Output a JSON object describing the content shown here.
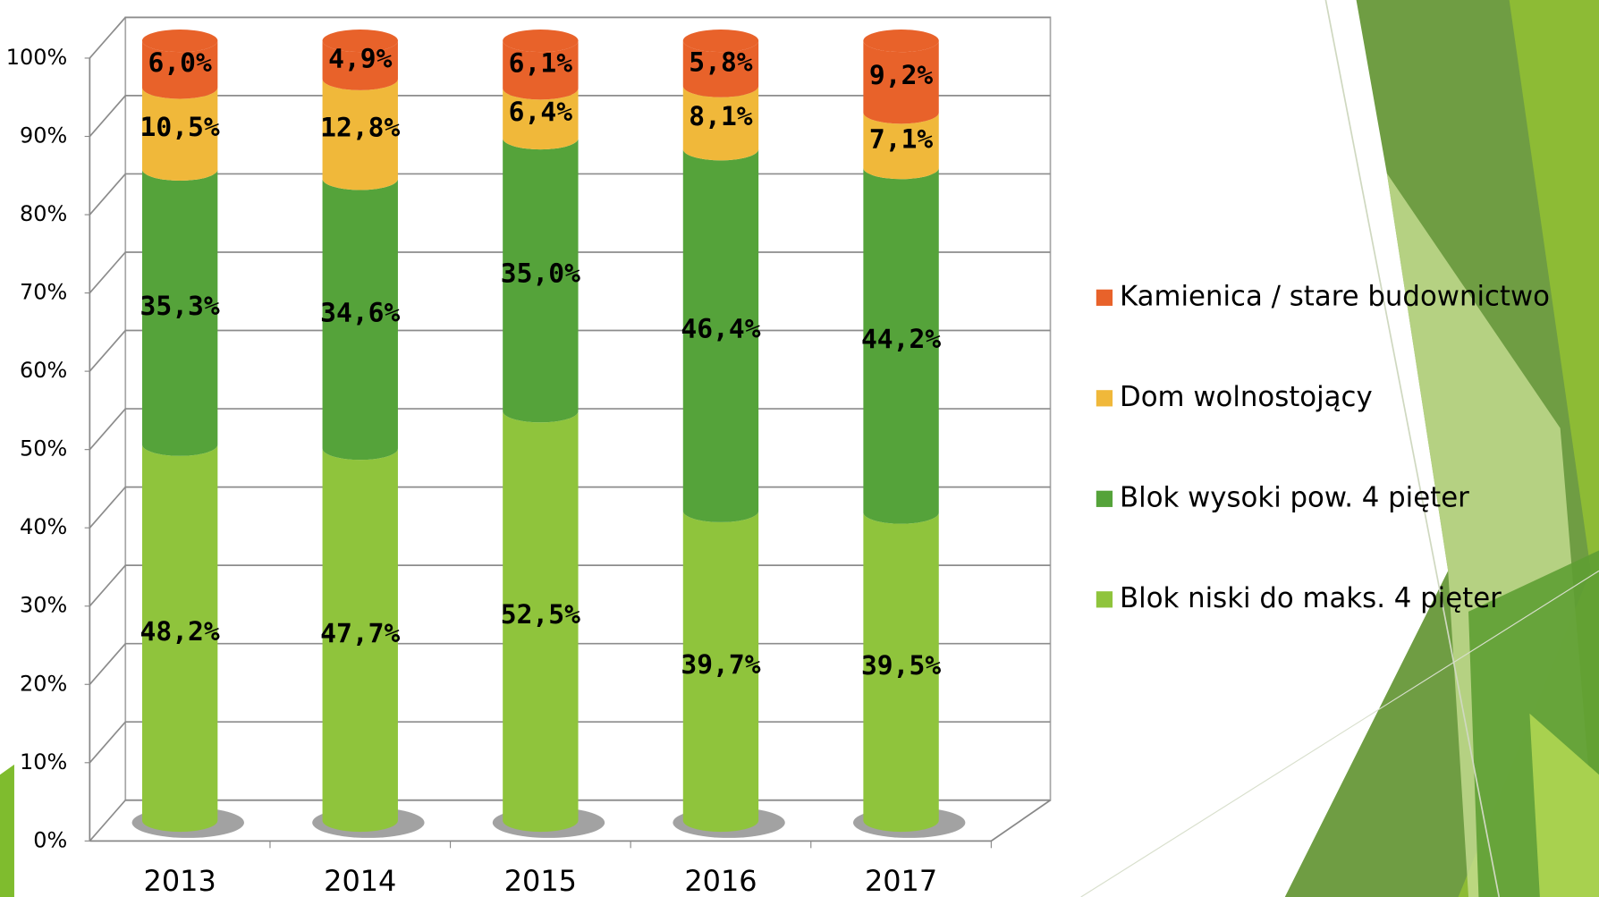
{
  "chart_data": {
    "type": "stacked-cylinder",
    "categories": [
      "2013",
      "2014",
      "2015",
      "2016",
      "2017"
    ],
    "series": [
      {
        "name": "Blok niski do maks. 4 pięter",
        "color": "#8fc43c",
        "values": [
          48.2,
          47.7,
          52.5,
          39.7,
          39.5
        ],
        "value_labels": [
          "48,2%",
          "47,7%",
          "52,5%",
          "39,7%",
          "39,5%"
        ]
      },
      {
        "name": "Blok wysoki pow. 4 pięter",
        "color": "#55a33a",
        "values": [
          35.3,
          34.6,
          35.0,
          46.4,
          44.2
        ],
        "value_labels": [
          "35,3%",
          "34,6%",
          "35,0%",
          "46,4%",
          "44,2%"
        ]
      },
      {
        "name": "Dom wolnostojący",
        "color": "#f0b83a",
        "values": [
          10.5,
          12.8,
          6.4,
          8.1,
          7.1
        ],
        "value_labels": [
          "10,5%",
          "12,8%",
          "6,4%",
          "8,1%",
          "7,1%"
        ]
      },
      {
        "name": "Kamienica / stare budownictwo",
        "color": "#e8622a",
        "values": [
          6.0,
          4.9,
          6.1,
          5.8,
          9.2
        ],
        "value_labels": [
          "6,0%",
          "4,9%",
          "6,1%",
          "5,8%",
          "9,2%"
        ]
      }
    ],
    "ylim": [
      0,
      100
    ],
    "yticks": [
      {
        "value": 0,
        "label": "0%"
      },
      {
        "value": 10,
        "label": "10%"
      },
      {
        "value": 20,
        "label": "20%"
      },
      {
        "value": 30,
        "label": "30%"
      },
      {
        "value": 40,
        "label": "40%"
      },
      {
        "value": 50,
        "label": "50%"
      },
      {
        "value": 60,
        "label": "60%"
      },
      {
        "value": 70,
        "label": "70%"
      },
      {
        "value": 80,
        "label": "80%"
      },
      {
        "value": 90,
        "label": "90%"
      },
      {
        "value": 100,
        "label": "100%"
      }
    ],
    "grid": true,
    "legend": "right"
  }
}
